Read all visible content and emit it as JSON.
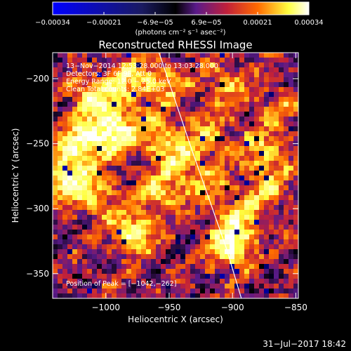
{
  "chart_data": {
    "type": "heatmap",
    "title": "Reconstructed RHESSI Image",
    "xlabel": "Heliocentric X (arcsec)",
    "ylabel": "Heliocentric Y (arcsec)",
    "xlim": [
      -1042,
      -848
    ],
    "ylim": [
      -369,
      -180
    ],
    "x_ticks": [
      -1000,
      -950,
      -900,
      -850
    ],
    "x_tick_labels": [
      "−1000",
      "−950",
      "−900",
      "−850"
    ],
    "y_ticks": [
      -200,
      -250,
      -300,
      -350
    ],
    "y_tick_labels": [
      "−200",
      "−250",
      "−300",
      "−350"
    ],
    "colorbar": {
      "range": [
        -0.00034,
        0.00034
      ],
      "tick_labels": [
        "−0.00034",
        "−0.00021",
        "−6.9e−05",
        "6.9e−05",
        "0.00021",
        "0.00034"
      ],
      "units": "(photons cm⁻² s⁻¹ asec⁻²)",
      "colormap": [
        "#0000ff",
        "#000000",
        "#5a1a8a",
        "#c0203a",
        "#ff6a00",
        "#ffff40",
        "#ffffff"
      ]
    },
    "annotations": [
      "13−Nov−2014 12:53:28.000 to 13:03:28.000",
      "Detectors: 3F 6F 9F, Att 0",
      "Energy Range: 12.0 − 25.0 keV",
      "Clean     Total counts: 2.84E+03"
    ],
    "peak_label": "Position of Peak = [−1042,−262]",
    "grid": "off",
    "limb_line": {
      "x": [
        -958,
        -932,
        -905,
        -893
      ],
      "y": [
        -180,
        -255,
        -330,
        -369
      ]
    }
  },
  "footer": {
    "date_label": "31−Jul−2017 18:42"
  }
}
